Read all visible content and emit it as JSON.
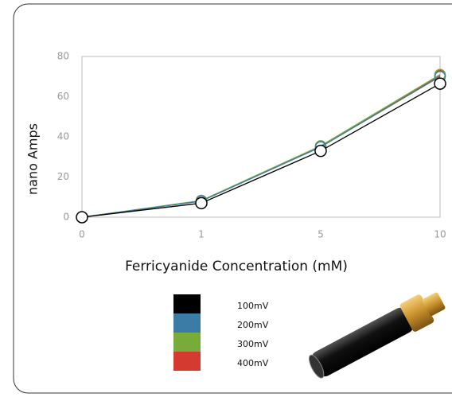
{
  "chart_data": {
    "type": "line",
    "categories": [
      "0",
      "1",
      "5",
      "10"
    ],
    "y_label": "nano Amps",
    "x_label": "Ferricyanide Concentration (mM)",
    "ylim": [
      0,
      80
    ],
    "yticks": [
      0,
      20,
      40,
      60,
      80
    ],
    "grid": false,
    "series": [
      {
        "name": "100mV",
        "color": "#000000",
        "values": [
          0,
          7,
          33,
          66.5
        ]
      },
      {
        "name": "200mV",
        "color": "#3a7ca5",
        "values": [
          0,
          8,
          35,
          70
        ]
      },
      {
        "name": "300mV",
        "color": "#77ab3a",
        "values": [
          0,
          8.3,
          35.5,
          71
        ]
      },
      {
        "name": "400mV",
        "color": "#d43a2f",
        "values": [
          0,
          8,
          35,
          70.5
        ]
      }
    ]
  }
}
